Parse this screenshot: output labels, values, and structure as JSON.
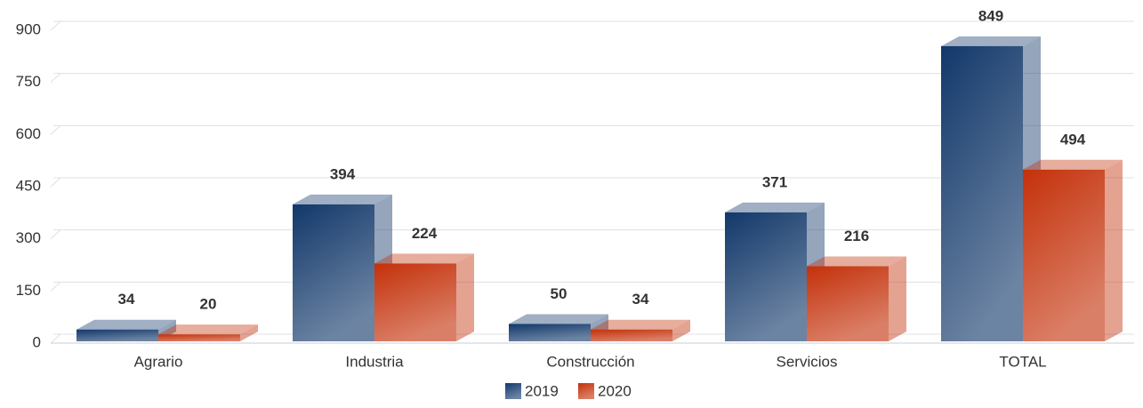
{
  "chart_data": {
    "type": "bar3d",
    "categories": [
      "Agrario",
      "Industria",
      "Construcción",
      "Servicios",
      "TOTAL"
    ],
    "series": [
      {
        "name": "2019",
        "color": "#12386a",
        "values": [
          34,
          394,
          50,
          371,
          849
        ]
      },
      {
        "name": "2020",
        "color": "#c4310a",
        "values": [
          20,
          224,
          34,
          216,
          494
        ]
      }
    ],
    "ylim": [
      0,
      900
    ],
    "yticks": [
      0,
      150,
      300,
      450,
      600,
      750,
      900
    ],
    "grid": true
  }
}
